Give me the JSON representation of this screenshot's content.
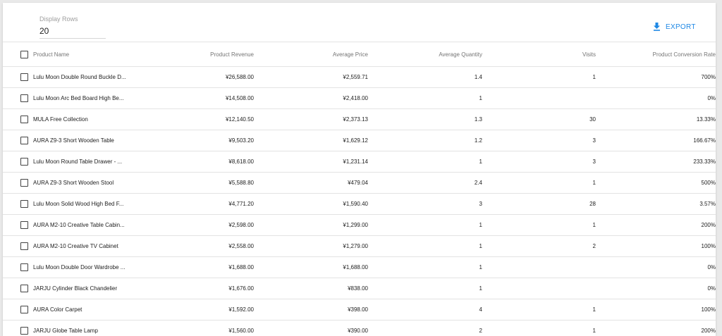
{
  "controls": {
    "display_rows_label": "Display Rows",
    "display_rows_value": "20",
    "export_label": "EXPORT"
  },
  "colors": {
    "accent": "#1e88e5"
  },
  "table": {
    "columns": [
      "Product Name",
      "Product Revenue",
      "Average Price",
      "Average Quantity",
      "Visits",
      "Product Conversion Rate"
    ],
    "rows": [
      [
        "Lulu Moon Double Round Buckle D...",
        "¥26,588.00",
        "¥2,559.71",
        "1.4",
        "1",
        "700%"
      ],
      [
        "Lulu Moon Arc Bed Board High Be...",
        "¥14,508.00",
        "¥2,418.00",
        "1",
        "",
        "0%"
      ],
      [
        "MULA Free Collection",
        "¥12,140.50",
        "¥2,373.13",
        "1.3",
        "30",
        "13.33%"
      ],
      [
        "AURA Z9-3 Short Wooden Table",
        "¥9,503.20",
        "¥1,629.12",
        "1.2",
        "3",
        "166.67%"
      ],
      [
        "Lulu Moon Round Table Drawer - ...",
        "¥8,618.00",
        "¥1,231.14",
        "1",
        "3",
        "233.33%"
      ],
      [
        "AURA Z9-3 Short Wooden Stool",
        "¥5,588.80",
        "¥479.04",
        "2.4",
        "1",
        "500%"
      ],
      [
        "Lulu Moon Solid Wood High Bed F...",
        "¥4,771.20",
        "¥1,590.40",
        "3",
        "28",
        "3.57%"
      ],
      [
        "AURA M2-10 Creative Table Cabin...",
        "¥2,598.00",
        "¥1,299.00",
        "1",
        "1",
        "200%"
      ],
      [
        "AURA M2-10 Creative TV Cabinet",
        "¥2,558.00",
        "¥1,279.00",
        "1",
        "2",
        "100%"
      ],
      [
        "Lulu Moon Double Door Wardrobe ...",
        "¥1,688.00",
        "¥1,688.00",
        "1",
        "",
        "0%"
      ],
      [
        "JARJU Cylinder Black Chandelier",
        "¥1,676.00",
        "¥838.00",
        "1",
        "",
        "0%"
      ],
      [
        "AURA Color Carpet",
        "¥1,592.00",
        "¥398.00",
        "4",
        "1",
        "100%"
      ],
      [
        "JARJU Globe Table Lamp",
        "¥1,560.00",
        "¥390.00",
        "2",
        "1",
        "200%"
      ]
    ]
  }
}
